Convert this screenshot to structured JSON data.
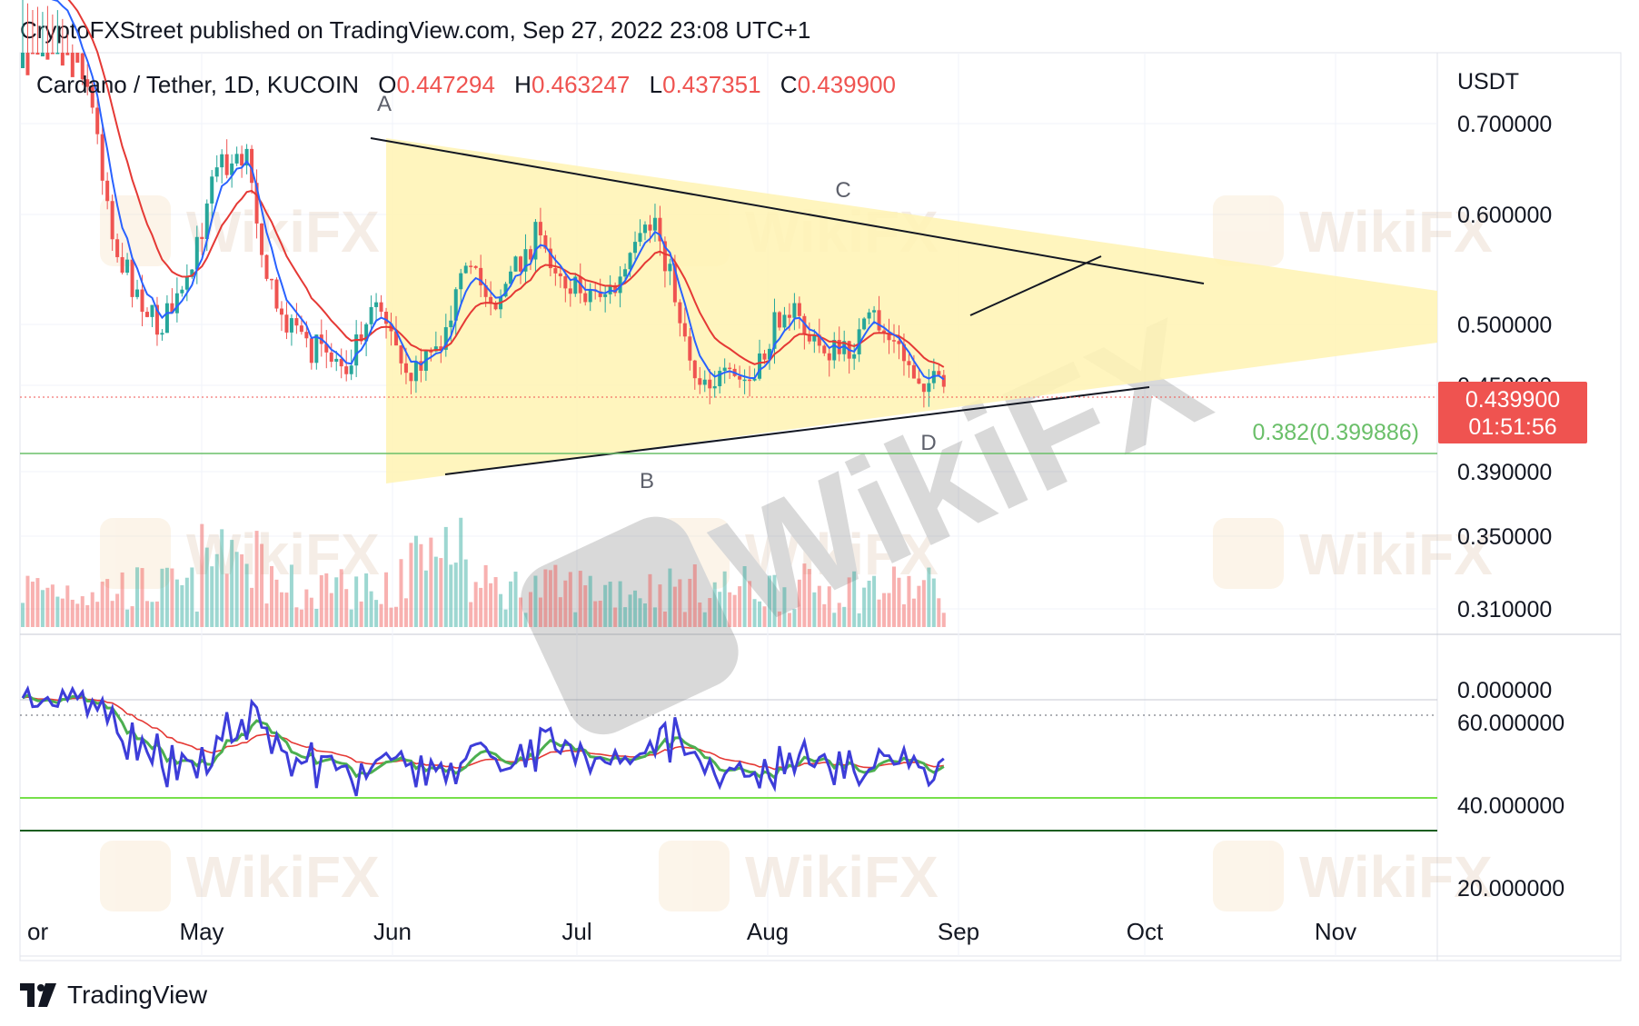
{
  "header": {
    "published_text": "CryptoFXStreet published on TradingView.com, Sep 27, 2022 23:08 UTC+1"
  },
  "footer": {
    "brand": "TradingView",
    "logo_icon": "tradingview-logo-icon"
  },
  "watermark": {
    "text": "WikiFX"
  },
  "chart_data": {
    "type": "candlestick",
    "symbol": "Cardano / Tether, 1D, KUCOIN",
    "ohlc_labels": {
      "O": "0.447294",
      "H": "0.463247",
      "L": "0.437351",
      "C": "0.439900"
    },
    "currency": "USDT",
    "price_axis_ticks": [
      "0.700000",
      "0.600000",
      "0.500000",
      "0.450000",
      "0.390000",
      "0.350000",
      "0.310000"
    ],
    "indicator_axis_ticks": [
      "0.000000",
      "60.000000",
      "40.000000",
      "20.000000"
    ],
    "time_axis_labels": [
      "Apr",
      "May",
      "Jun",
      "Jul",
      "Aug",
      "Sep",
      "Oct",
      "Nov"
    ],
    "last_price": "0.439900",
    "countdown": "01:51:56",
    "fib_level": "0.382(0.399886)",
    "wave_labels": [
      "A",
      "B",
      "C",
      "D"
    ],
    "colors": {
      "up": "#26a69a",
      "down": "#ef5350",
      "ema_fast": "#2962ff",
      "ema_slow": "#e53935",
      "triangle": "#fff3b3",
      "rsi": "#3d3dd9",
      "rsi_ma": "#4caf50",
      "rsi_slow": "#e53935",
      "level_40": "#76e04a",
      "level_30": "#1b5e20",
      "fib": "#6abf69",
      "price_tag": "#ef5350"
    }
  }
}
